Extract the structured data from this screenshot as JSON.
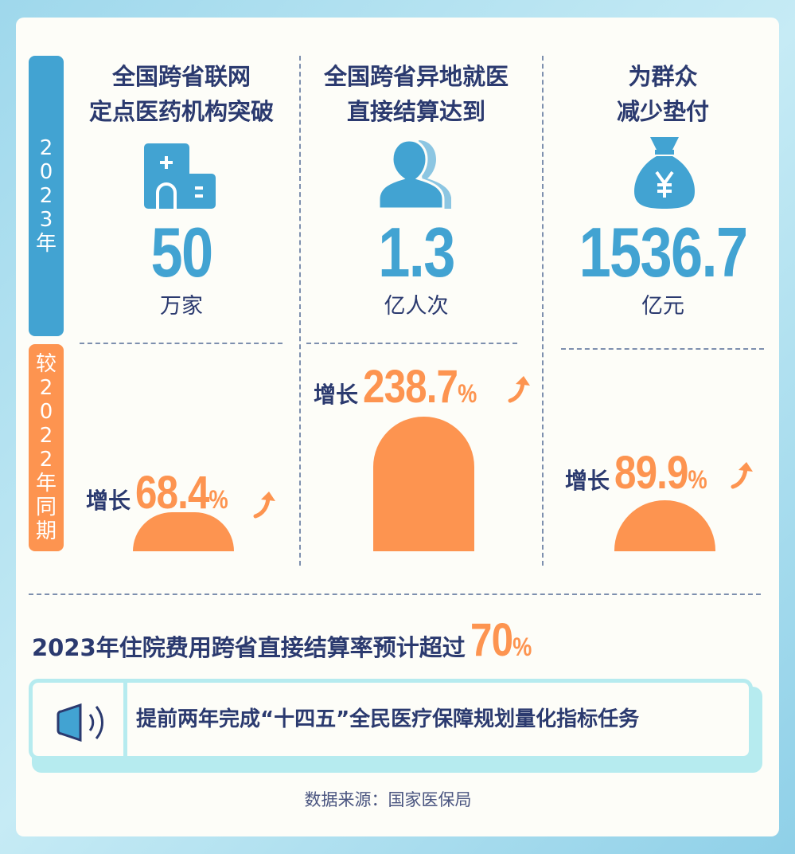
{
  "side_labels": {
    "year": [
      "2",
      "0",
      "2",
      "3",
      "年"
    ],
    "compare": [
      "较",
      "2",
      "0",
      "2",
      "2",
      "年",
      "同",
      "期"
    ]
  },
  "columns": [
    {
      "title_lines": [
        "全国跨省联网",
        "定点医药机构突破"
      ],
      "icon": "hospital-icon",
      "value": "50",
      "unit": "万家",
      "growth_label": "增长",
      "growth_value": "68.4",
      "growth_pct": "%",
      "growth_number": 68.4
    },
    {
      "title_lines": [
        "全国跨省异地就医",
        "直接结算达到"
      ],
      "icon": "person-icon",
      "value": "1.3",
      "unit": "亿人次",
      "growth_label": "增长",
      "growth_value": "238.7",
      "growth_pct": "%",
      "growth_number": 238.7
    },
    {
      "title_lines": [
        "为群众",
        "减少垫付"
      ],
      "icon": "money-bag-icon",
      "value": "1536.7",
      "unit": "亿元",
      "growth_label": "增长",
      "growth_value": "89.9",
      "growth_pct": "%",
      "growth_number": 89.9
    }
  ],
  "summary": {
    "text": "2023年住院费用跨省直接结算率预计超过",
    "value": "70",
    "pct": "%"
  },
  "notice": {
    "icon": "speaker-icon",
    "text": "提前两年完成“十四五”全民医疗保障规划量化指标任务"
  },
  "source": "数据来源：国家医保局",
  "colors": {
    "blue": "#42a3d2",
    "orange": "#fd9450",
    "navy": "#2b3a6f"
  }
}
